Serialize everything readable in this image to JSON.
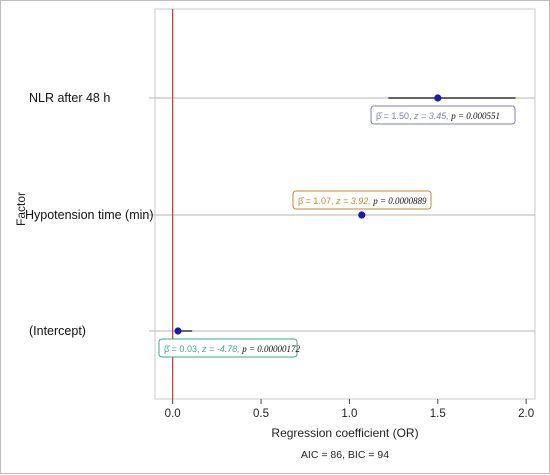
{
  "chart_data": {
    "type": "forest",
    "xlabel": "Regression coefficient (OR)",
    "ylabel": "Factor",
    "xlim": [
      -0.1,
      2.05
    ],
    "x_ticks": [
      "0.0",
      "0.5",
      "1.0",
      "1.5",
      "2.0"
    ],
    "x_tick_values": [
      0,
      0.5,
      1.0,
      1.5,
      2.0
    ],
    "reference_line": 0,
    "grid": "horizontal",
    "factors": [
      {
        "label": "NLR after 48 h",
        "estimate": 1.5,
        "ci": [
          1.22,
          1.94
        ],
        "annotation": {
          "beta": "β̂ = 1.50,",
          "z": "z = 3.45,",
          "p": "p = 0.000551"
        },
        "annotation_color": "#7f7cc0"
      },
      {
        "label": "Hypotension time (min)",
        "estimate": 1.07,
        "ci": [
          1.07,
          1.07
        ],
        "annotation": {
          "beta": "β̂ = 1.07,",
          "z": "z = 3.92,",
          "p": "p = 0.0000889"
        },
        "annotation_color": "#c8862c"
      },
      {
        "label": "(Intercept)",
        "estimate": 0.03,
        "ci": [
          0.01,
          0.11
        ],
        "annotation": {
          "beta": "β̂ = 0.03,",
          "z": "z = -4.78,",
          "p": "p = 0.00000172"
        },
        "annotation_color": "#3aa88c"
      }
    ],
    "footer": "AIC = 86, BIC = 94"
  },
  "colors": {
    "point": "#1a1ab0",
    "ci": "#111111",
    "reference": "#cc3333",
    "grid": "#c4c4c4",
    "panel_border": "#c8c8c8"
  }
}
